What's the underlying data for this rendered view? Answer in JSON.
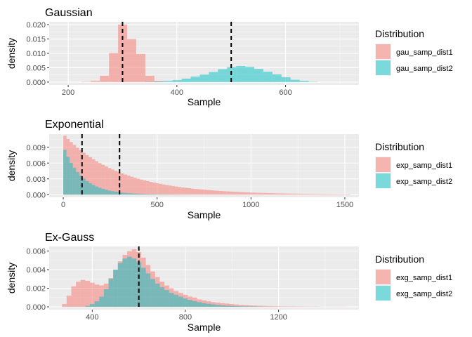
{
  "colors": {
    "dist1": "#F8766D",
    "dist2": "#00BFC4",
    "panel": "#EBEBEB",
    "grid_major": "#FFFFFF",
    "vline": "#000000"
  },
  "chart_data": [
    {
      "type": "bar",
      "title": "Gaussian",
      "xlabel": "Sample",
      "ylabel": "density",
      "xlim": [
        165,
        735
      ],
      "ylim": [
        -0.001,
        0.021
      ],
      "x_ticks": [
        {
          "value": 200,
          "label": "200"
        },
        {
          "value": 400,
          "label": "400"
        },
        {
          "value": 600,
          "label": "600"
        }
      ],
      "y_ticks": [
        {
          "value": 0.0,
          "label": "0.000"
        },
        {
          "value": 0.005,
          "label": "0.005"
        },
        {
          "value": 0.01,
          "label": "0.010"
        },
        {
          "value": 0.015,
          "label": "0.015"
        },
        {
          "value": 0.02,
          "label": "0.020"
        }
      ],
      "vlines": [
        300,
        500
      ],
      "legend_title": "Distribution",
      "series": [
        {
          "name": "gau_samp_dist1",
          "color_key": "dist1",
          "bin_width": 16.7,
          "bins": [
            [
              225,
              0.0001
            ],
            [
              241.7,
              0.0004
            ],
            [
              258.4,
              0.0022
            ],
            [
              275.1,
              0.0101
            ],
            [
              291.8,
              0.02
            ],
            [
              308.5,
              0.015
            ],
            [
              325.2,
              0.0098
            ],
            [
              341.9,
              0.0022
            ],
            [
              358.6,
              0.0004
            ]
          ]
        },
        {
          "name": "gau_samp_dist2",
          "color_key": "dist2",
          "bin_width": 16.7,
          "bins": [
            [
              342,
              0.0001
            ],
            [
              358.7,
              0.0002
            ],
            [
              375.4,
              0.0004
            ],
            [
              392.1,
              0.0007
            ],
            [
              408.8,
              0.0012
            ],
            [
              425.5,
              0.0019
            ],
            [
              442.2,
              0.0026
            ],
            [
              458.9,
              0.0035
            ],
            [
              475.6,
              0.0045
            ],
            [
              492.3,
              0.0052
            ],
            [
              509,
              0.0056
            ],
            [
              525.7,
              0.0053
            ],
            [
              542.4,
              0.0046
            ],
            [
              559.1,
              0.0036
            ],
            [
              575.8,
              0.0027
            ],
            [
              592.5,
              0.0017
            ],
            [
              609.2,
              0.0008
            ],
            [
              625.9,
              0.0004
            ],
            [
              642.6,
              0.0001
            ]
          ]
        }
      ]
    },
    {
      "type": "bar",
      "title": "Exponential",
      "xlabel": "Sample",
      "ylabel": "density",
      "xlim": [
        -75,
        1575
      ],
      "ylim": [
        -0.0005,
        0.0115
      ],
      "x_ticks": [
        {
          "value": 0,
          "label": "0"
        },
        {
          "value": 500,
          "label": "500"
        },
        {
          "value": 1000,
          "label": "1000"
        },
        {
          "value": 1500,
          "label": "1500"
        }
      ],
      "y_ticks": [
        {
          "value": 0.0,
          "label": "0.000"
        },
        {
          "value": 0.003,
          "label": "0.003"
        },
        {
          "value": 0.006,
          "label": "0.006"
        },
        {
          "value": 0.009,
          "label": "0.009"
        }
      ],
      "vlines": [
        100,
        300
      ],
      "legend_title": "Distribution",
      "series": [
        {
          "name": "exp_samp_dist1",
          "color_key": "dist1",
          "bin_width": 17,
          "decay": 300,
          "start": 0,
          "end": 1530,
          "peak": 0.0112
        },
        {
          "name": "exp_samp_dist2",
          "color_key": "dist2",
          "bin_width": 17,
          "decay": 100,
          "start": 0,
          "end": 680,
          "peak": 0.0085
        }
      ]
    },
    {
      "type": "bar",
      "title": "Ex-Gauss",
      "xlabel": "Sample",
      "ylabel": "density",
      "xlim": [
        215,
        1545
      ],
      "ylim": [
        -0.0003,
        0.0065
      ],
      "x_ticks": [
        {
          "value": 400,
          "label": "400"
        },
        {
          "value": 800,
          "label": "800"
        },
        {
          "value": 1200,
          "label": "1200"
        }
      ],
      "y_ticks": [
        {
          "value": 0.0,
          "label": "0.000"
        },
        {
          "value": 0.002,
          "label": "0.002"
        },
        {
          "value": 0.004,
          "label": "0.004"
        },
        {
          "value": 0.006,
          "label": "0.006"
        }
      ],
      "vlines": [
        600
      ],
      "legend_title": "Distribution",
      "series": [
        {
          "name": "exg_samp_dist1",
          "color_key": "dist1",
          "bin_width": 20,
          "bins": [
            [
              270,
              0.0003
            ],
            [
              290,
              0.0012
            ],
            [
              310,
              0.0022
            ],
            [
              330,
              0.0027
            ],
            [
              350,
              0.0029
            ],
            [
              370,
              0.0028
            ],
            [
              390,
              0.0026
            ],
            [
              410,
              0.0024
            ],
            [
              430,
              0.0023
            ],
            [
              450,
              0.0025
            ],
            [
              470,
              0.0031
            ],
            [
              490,
              0.004
            ],
            [
              510,
              0.0049
            ],
            [
              530,
              0.0056
            ],
            [
              550,
              0.006
            ],
            [
              570,
              0.0062
            ],
            [
              590,
              0.0059
            ],
            [
              610,
              0.0053
            ],
            [
              630,
              0.0045
            ],
            [
              650,
              0.0038
            ],
            [
              670,
              0.0032
            ],
            [
              690,
              0.0027
            ],
            [
              710,
              0.0023
            ],
            [
              730,
              0.002
            ],
            [
              750,
              0.0017
            ],
            [
              770,
              0.0015
            ],
            [
              790,
              0.0013
            ],
            [
              810,
              0.0011
            ],
            [
              830,
              0.001
            ],
            [
              850,
              0.0008
            ],
            [
              870,
              0.0007
            ],
            [
              890,
              0.0006
            ],
            [
              910,
              0.0005
            ],
            [
              930,
              0.00045
            ],
            [
              950,
              0.0004
            ],
            [
              970,
              0.00035
            ],
            [
              990,
              0.0003
            ],
            [
              1010,
              0.00025
            ],
            [
              1030,
              0.0002
            ],
            [
              1050,
              0.00018
            ],
            [
              1070,
              0.00015
            ],
            [
              1090,
              0.00013
            ],
            [
              1110,
              0.00011
            ],
            [
              1130,
              0.0001
            ],
            [
              1150,
              8e-05
            ],
            [
              1170,
              7e-05
            ],
            [
              1190,
              6e-05
            ],
            [
              1210,
              5e-05
            ],
            [
              1230,
              4e-05
            ],
            [
              1250,
              4e-05
            ],
            [
              1270,
              3e-05
            ],
            [
              1290,
              3e-05
            ],
            [
              1310,
              2e-05
            ],
            [
              1330,
              2e-05
            ],
            [
              1350,
              2e-05
            ],
            [
              1370,
              1e-05
            ],
            [
              1390,
              1e-05
            ],
            [
              1410,
              1e-05
            ],
            [
              1430,
              1e-05
            ],
            [
              1450,
              1e-05
            ],
            [
              1470,
              1e-05
            ]
          ]
        },
        {
          "name": "exg_samp_dist2",
          "color_key": "dist2",
          "bin_width": 20,
          "bins": [
            [
              370,
              0.0001
            ],
            [
              390,
              0.0003
            ],
            [
              410,
              0.0006
            ],
            [
              430,
              0.0011
            ],
            [
              450,
              0.0019
            ],
            [
              470,
              0.003
            ],
            [
              490,
              0.004
            ],
            [
              510,
              0.0047
            ],
            [
              530,
              0.0052
            ],
            [
              550,
              0.0054
            ],
            [
              570,
              0.0052
            ],
            [
              590,
              0.0048
            ],
            [
              610,
              0.0042
            ],
            [
              630,
              0.0036
            ],
            [
              650,
              0.003
            ],
            [
              670,
              0.0025
            ],
            [
              690,
              0.0021
            ],
            [
              710,
              0.0018
            ],
            [
              730,
              0.0015
            ],
            [
              750,
              0.0013
            ],
            [
              770,
              0.0011
            ],
            [
              790,
              0.0009
            ],
            [
              810,
              0.00075
            ],
            [
              830,
              0.0006
            ],
            [
              850,
              0.0005
            ],
            [
              870,
              0.0004
            ],
            [
              890,
              0.00032
            ],
            [
              910,
              0.00026
            ],
            [
              930,
              0.0002
            ],
            [
              950,
              0.00016
            ],
            [
              970,
              0.00012
            ],
            [
              990,
              0.0001
            ],
            [
              1010,
              8e-05
            ],
            [
              1030,
              6e-05
            ],
            [
              1050,
              5e-05
            ],
            [
              1070,
              4e-05
            ],
            [
              1090,
              3e-05
            ],
            [
              1110,
              2e-05
            ]
          ]
        }
      ]
    }
  ]
}
